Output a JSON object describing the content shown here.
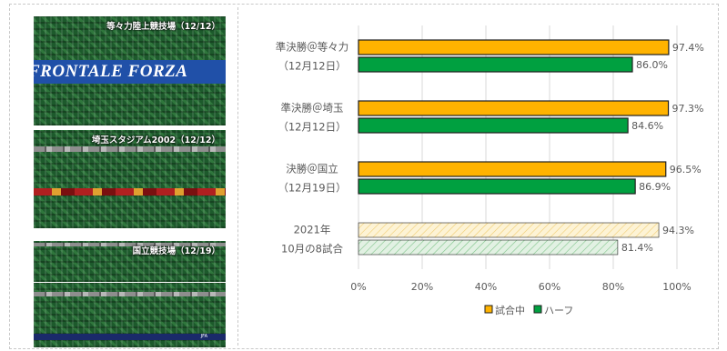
{
  "photos": [
    {
      "caption": "等々力陸上競技場（12/12）",
      "banner": "FRONTALE FORZA"
    },
    {
      "caption": "埼玉スタジアム2002（12/12）"
    },
    {
      "caption": "国立競技場（12/19）"
    },
    {
      "ribbon": "JFA"
    }
  ],
  "colors": {
    "during": "#ffb300",
    "half": "#00a040",
    "during_light": "#fdf3d5",
    "half_light": "#e2f1e3",
    "border": "#1f1f1f",
    "grid": "#d9d9d9",
    "text": "#595959"
  },
  "chart_data": {
    "type": "bar",
    "orientation": "horizontal",
    "categories": [
      {
        "line1": "準決勝＠等々力",
        "line2": "（12月12日）"
      },
      {
        "line1": "準決勝＠埼玉",
        "line2": "（12月12日）"
      },
      {
        "line1": "決勝＠国立",
        "line2": "（12月19日）"
      },
      {
        "line1": "2021年",
        "line2": "10月の8試合"
      }
    ],
    "series": [
      {
        "name": "試合中",
        "values": [
          97.4,
          97.3,
          96.5,
          94.3
        ],
        "labels": [
          "97.4%",
          "97.3%",
          "96.5%",
          "94.3%"
        ]
      },
      {
        "name": "ハーフ",
        "values": [
          86.0,
          84.6,
          86.9,
          81.4
        ],
        "labels": [
          "86.0%",
          "84.6%",
          "86.9%",
          "81.4%"
        ]
      }
    ],
    "hatched_category_index": 3,
    "xlim": [
      0,
      100
    ],
    "xticks": [
      "0%",
      "20%",
      "40%",
      "60%",
      "80%",
      "100%"
    ],
    "grid": true,
    "legend": "bottom"
  }
}
